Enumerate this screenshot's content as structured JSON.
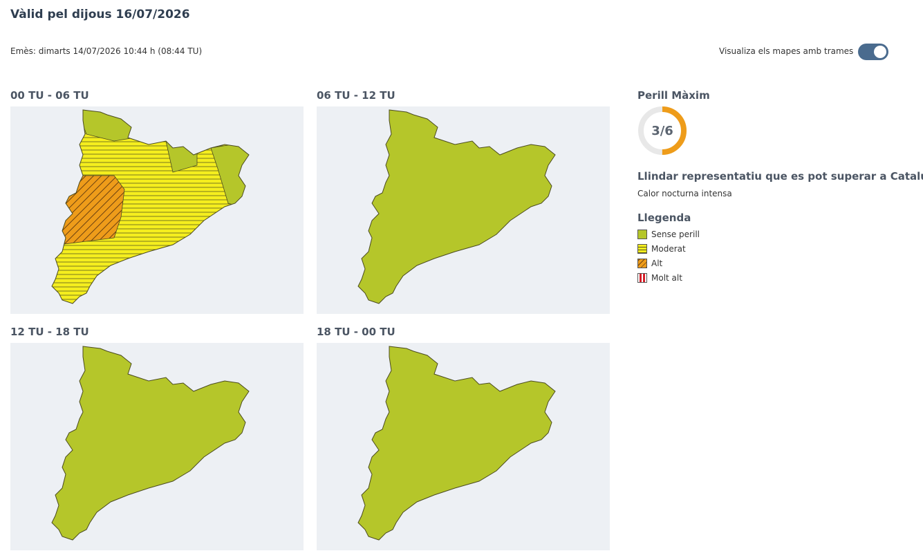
{
  "header": {
    "title": "Vàlid pel dijous 16/07/2026",
    "issued": "Emès: dimarts 14/07/2026 10:44 h (08:44 TU)",
    "toggle_label": "Visualiza els mapes amb trames"
  },
  "maps": [
    {
      "title": "00 TU - 06 TU"
    },
    {
      "title": "06 TU - 12 TU"
    },
    {
      "title": "12 TU - 18 TU"
    },
    {
      "title": "18 TU - 00 TU"
    }
  ],
  "side": {
    "max_title": "Perill Màxim",
    "gauge": {
      "label": "3/6",
      "value": 3,
      "max": 6,
      "color": "#ee9c1a"
    },
    "threshold_title": "Llindar representatiu que es pot superar a Catalunya",
    "threshold_text": "Calor nocturna intensa",
    "legend_title": "Llegenda",
    "legend": [
      {
        "name": "Sense perill",
        "color": "#b5c62a"
      },
      {
        "name": "Moderat",
        "color": "#f5ee1e"
      },
      {
        "name": "Alt",
        "color": "#ee9c1a"
      },
      {
        "name": "Molt alt",
        "color": "#d51f2a"
      }
    ]
  }
}
